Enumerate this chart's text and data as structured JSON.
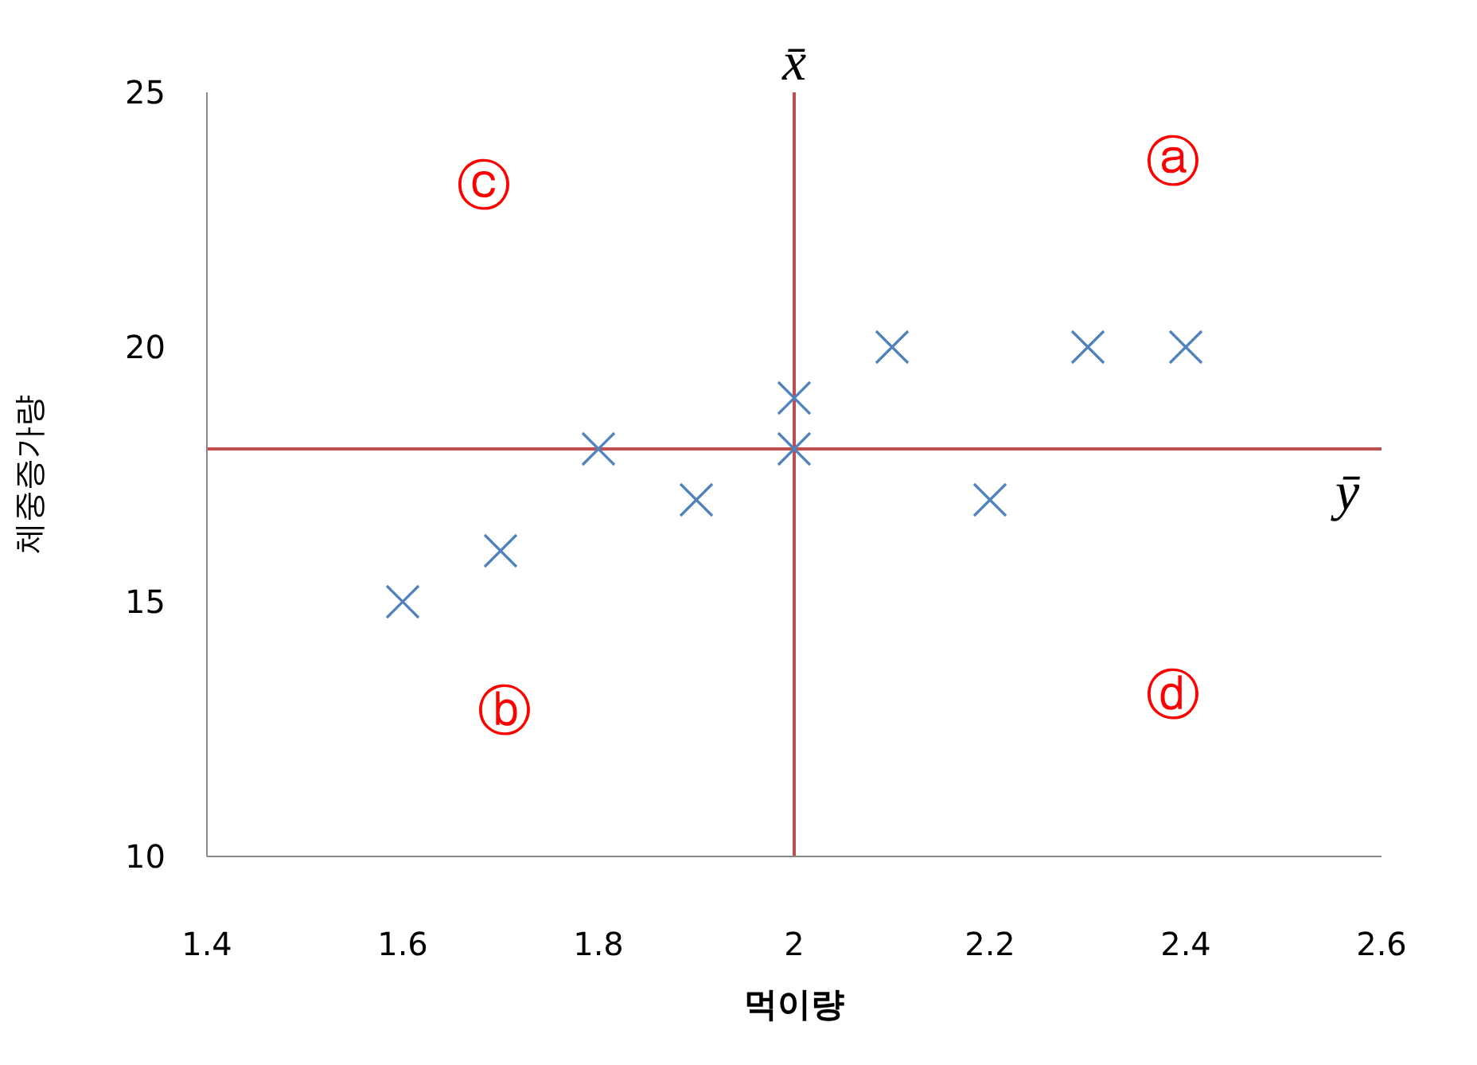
{
  "chart_data": {
    "type": "scatter",
    "xlabel": "먹이량",
    "ylabel": "체중증가량",
    "series": [
      {
        "color": "#4f81bd",
        "x": [
          1.6,
          1.7,
          1.8,
          1.9,
          2.0,
          2.0,
          2.1,
          2.2,
          2.3,
          2.4
        ],
        "values": [
          15,
          16,
          18,
          17,
          19,
          18,
          20,
          17,
          20,
          20
        ]
      }
    ],
    "marker": "cross",
    "grid": false,
    "legend": false,
    "xlim": [
      1.4,
      2.6
    ],
    "xticks": [
      1.4,
      1.6,
      1.8,
      2,
      2.2,
      2.4,
      2.6
    ],
    "ylim": [
      10,
      25
    ],
    "yticks": [
      10,
      15,
      20,
      25
    ],
    "ref_lines": [
      {
        "axis": "x",
        "value": 2,
        "label": "x̄",
        "color": "#c0504d"
      },
      {
        "axis": "y",
        "value": 18,
        "label": "ȳ",
        "color": "#c0504d"
      }
    ],
    "annotations": [
      "ⓐ",
      "ⓑ",
      "ⓒ",
      "ⓓ"
    ]
  }
}
